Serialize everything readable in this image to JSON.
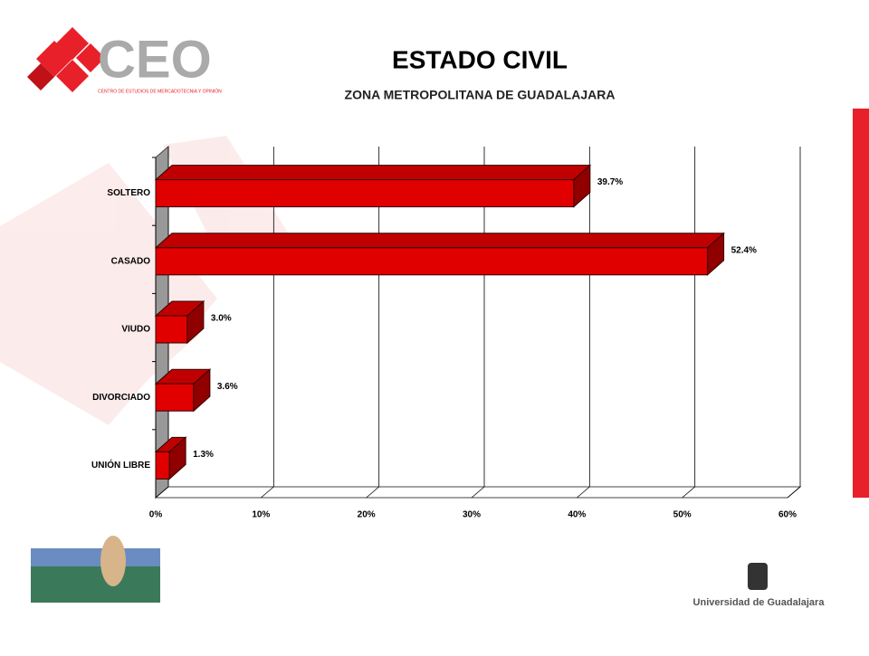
{
  "logo": {
    "name": "CEO",
    "tagline": "CENTRO DE ESTUDIOS DE MERCADOTECNIA Y OPINIÓN"
  },
  "footer": {
    "university": "Universidad de Guadalajara"
  },
  "chart_data": {
    "type": "bar3d",
    "title": "ESTADO CIVIL",
    "subtitle": "ZONA METROPOLITANA DE GUADALAJARA",
    "categories": [
      "SOLTERO",
      "CASADO",
      "VIUDO",
      "DIVORCIADO",
      "UNIÓN LIBRE"
    ],
    "values": [
      39.7,
      52.4,
      3.0,
      3.6,
      1.3
    ],
    "value_labels": [
      "39.7%",
      "52.4%",
      "3.0%",
      "3.6%",
      "1.3%"
    ],
    "color": "#e00000",
    "xlim": [
      0,
      60
    ],
    "xticks": [
      {
        "value": 0,
        "label": "0%"
      },
      {
        "value": 10,
        "label": "10%"
      },
      {
        "value": 20,
        "label": "20%"
      },
      {
        "value": 30,
        "label": "30%"
      },
      {
        "value": 40,
        "label": "40%"
      },
      {
        "value": 50,
        "label": "50%"
      },
      {
        "value": 60,
        "label": "60%"
      }
    ],
    "grid": true
  }
}
